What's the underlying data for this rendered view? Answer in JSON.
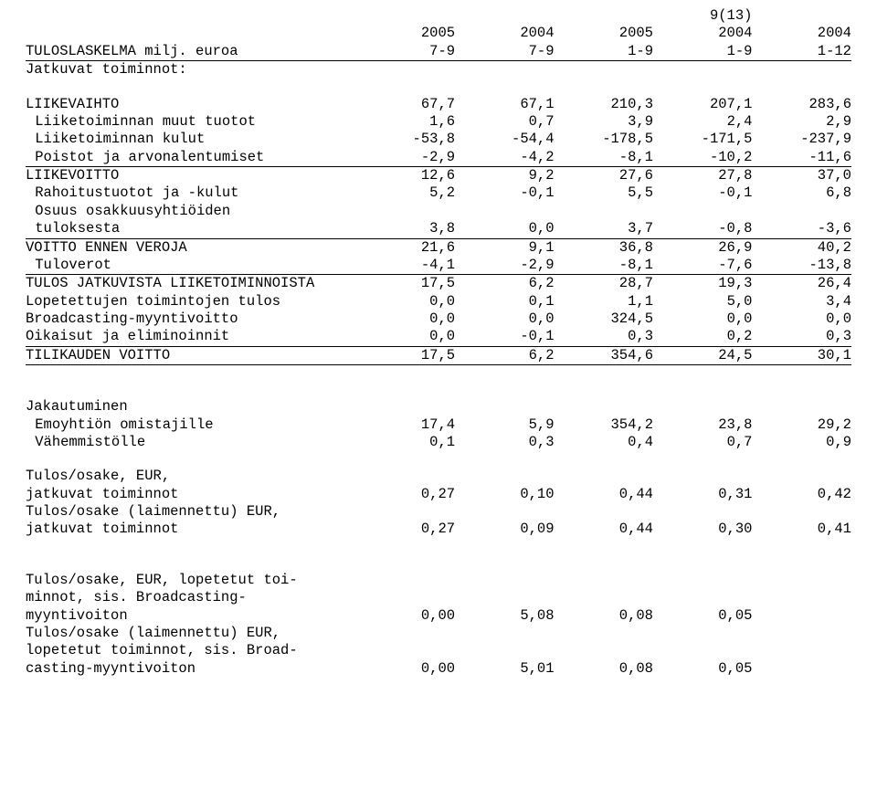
{
  "page_number": "9(13)",
  "header": {
    "years": [
      "2005",
      "2004",
      "2005",
      "2004",
      "2004"
    ],
    "periods": [
      "7-9",
      "7-9",
      "1-9",
      "1-9",
      "1-12"
    ],
    "title": "TULOSLASKELMA milj. euroa"
  },
  "rows": [
    {
      "label": "Jatkuvat toiminnot:",
      "vals": [
        "",
        "",
        "",
        "",
        ""
      ]
    },
    {
      "spacer": true
    },
    {
      "label": "LIIKEVAIHTO",
      "vals": [
        "67,7",
        "67,1",
        "210,3",
        "207,1",
        "283,6"
      ]
    },
    {
      "label": "Liiketoiminnan muut tuotot",
      "indent": true,
      "vals": [
        "1,6",
        "0,7",
        "3,9",
        "2,4",
        "2,9"
      ]
    },
    {
      "label": "Liiketoiminnan kulut",
      "indent": true,
      "vals": [
        "-53,8",
        "-54,4",
        "-178,5",
        "-171,5",
        "-237,9"
      ]
    },
    {
      "label": "Poistot ja arvonalentumiset",
      "indent": true,
      "underline": true,
      "vals": [
        "-2,9",
        "-4,2",
        "-8,1",
        "-10,2",
        "-11,6"
      ]
    },
    {
      "label": "LIIKEVOITTO",
      "vals": [
        "12,6",
        "9,2",
        "27,6",
        "27,8",
        "37,0"
      ]
    },
    {
      "label": "Rahoitustuotot ja -kulut",
      "indent": true,
      "vals": [
        "5,2",
        "-0,1",
        "5,5",
        "-0,1",
        "6,8"
      ]
    },
    {
      "label": "Osuus osakkuusyhtiöiden",
      "indent": true,
      "vals": [
        "",
        "",
        "",
        "",
        ""
      ]
    },
    {
      "label": "tuloksesta",
      "indent": true,
      "underline": true,
      "vals": [
        "3,8",
        "0,0",
        "3,7",
        "-0,8",
        "-3,6"
      ]
    },
    {
      "label": "VOITTO ENNEN VEROJA",
      "vals": [
        "21,6",
        "9,1",
        "36,8",
        "26,9",
        "40,2"
      ]
    },
    {
      "label": "Tuloverot",
      "indent": true,
      "underline": true,
      "vals": [
        "-4,1",
        "-2,9",
        "-8,1",
        "-7,6",
        "-13,8"
      ]
    },
    {
      "label": "TULOS JATKUVISTA LIIKETOIMINNOISTA",
      "vals": [
        "17,5",
        "6,2",
        "28,7",
        "19,3",
        "26,4"
      ]
    },
    {
      "label": "Lopetettujen toimintojen tulos",
      "vals": [
        "0,0",
        "0,1",
        "1,1",
        "5,0",
        "3,4"
      ]
    },
    {
      "label": "Broadcasting-myyntivoitto",
      "vals": [
        "0,0",
        "0,0",
        "324,5",
        "0,0",
        "0,0"
      ]
    },
    {
      "label": "Oikaisut ja eliminoinnit",
      "underline": true,
      "vals": [
        "0,0",
        "-0,1",
        "0,3",
        "0,2",
        "0,3"
      ]
    },
    {
      "label": "TILIKAUDEN VOITTO",
      "underline": true,
      "vals": [
        "17,5",
        "6,2",
        "354,6",
        "24,5",
        "30,1"
      ]
    },
    {
      "spacer": true
    },
    {
      "spacer": true
    },
    {
      "label": "Jakautuminen",
      "vals": [
        "",
        "",
        "",
        "",
        ""
      ]
    },
    {
      "label": "Emoyhtiön omistajille",
      "indent": true,
      "vals": [
        "17,4",
        "5,9",
        "354,2",
        "23,8",
        "29,2"
      ]
    },
    {
      "label": "Vähemmistölle",
      "indent": true,
      "vals": [
        "0,1",
        "0,3",
        "0,4",
        "0,7",
        "0,9"
      ]
    },
    {
      "spacer": true
    },
    {
      "label": "Tulos/osake, EUR,",
      "vals": [
        "",
        "",
        "",
        "",
        ""
      ]
    },
    {
      "label": "jatkuvat toiminnot",
      "vals": [
        "0,27",
        "0,10",
        "0,44",
        "0,31",
        "0,42"
      ]
    },
    {
      "label": "Tulos/osake (laimennettu) EUR,",
      "vals": [
        "",
        "",
        "",
        "",
        ""
      ]
    },
    {
      "label": "jatkuvat toiminnot",
      "vals": [
        "0,27",
        "0,09",
        "0,44",
        "0,30",
        "0,41"
      ]
    },
    {
      "spacer": true
    },
    {
      "spacer": true
    },
    {
      "label": "Tulos/osake, EUR, lopetetut toi-",
      "vals": [
        "",
        "",
        "",
        "",
        ""
      ]
    },
    {
      "label": "minnot, sis. Broadcasting-",
      "vals": [
        "",
        "",
        "",
        "",
        ""
      ]
    },
    {
      "label": "myyntivoiton",
      "vals": [
        "0,00",
        "5,08",
        "0,08",
        "0,05",
        ""
      ]
    },
    {
      "label": "Tulos/osake (laimennettu) EUR,",
      "vals": [
        "",
        "",
        "",
        "",
        ""
      ]
    },
    {
      "label": "lopetetut toiminnot, sis. Broad-",
      "vals": [
        "",
        "",
        "",
        "",
        ""
      ]
    },
    {
      "label": "casting-myyntivoiton",
      "vals": [
        "0,00",
        "5,01",
        "0,08",
        "0,05",
        ""
      ]
    }
  ]
}
